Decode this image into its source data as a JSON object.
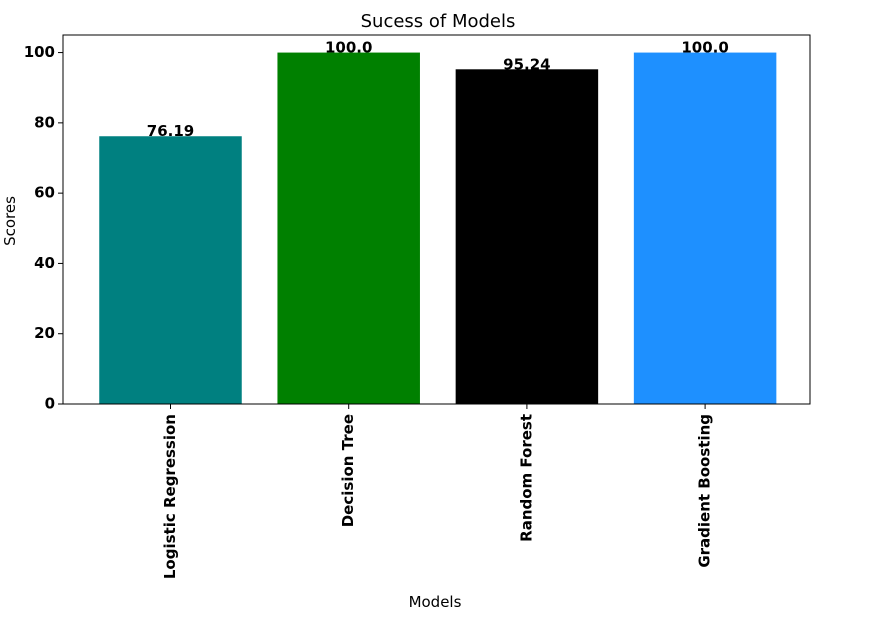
{
  "chart_data": {
    "type": "bar",
    "title": "Sucess of Models",
    "xlabel": "Models",
    "ylabel": "Scores",
    "categories": [
      "Logistic Regression",
      "Decision Tree",
      "Random Forest",
      "Gradient Boosting"
    ],
    "values": [
      76.19,
      100.0,
      95.24,
      100.0
    ],
    "value_labels": [
      "76.19",
      "100.0",
      "95.24",
      "100.0"
    ],
    "colors": [
      "#008080",
      "#008000",
      "#000000",
      "#1E90FF"
    ],
    "ylim": [
      0,
      105
    ],
    "yticks": [
      0,
      20,
      40,
      60,
      80,
      100
    ],
    "grid": false,
    "xtick_rotation": "vertical"
  }
}
